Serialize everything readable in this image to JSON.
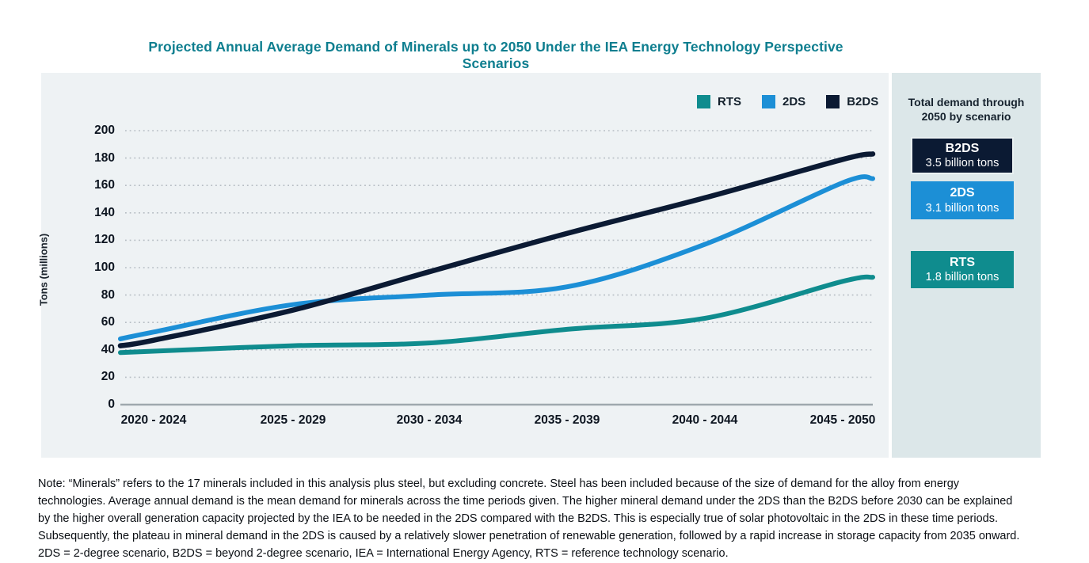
{
  "title": "Projected Annual Average Demand of Minerals up to 2050 Under the IEA Energy Technology Perspective Scenarios",
  "colors": {
    "rts_teal": "#0f8c8e",
    "tds_blue": "#1c8fd6",
    "b2ds_navy": "#0b1a33",
    "title_teal": "#0e7e8f",
    "chart_bg": "#eef2f4",
    "sidebar_bg": "#dce7e9",
    "gridline": "#b6bdc3",
    "axis_line": "#9fa8ae"
  },
  "chart_data": {
    "type": "line",
    "title": "Projected Annual Average Demand of Minerals up to 2050 Under the IEA Energy Technology Perspective Scenarios",
    "categories": [
      "2020 - 2024",
      "2025 - 2029",
      "2030 - 2034",
      "2035 - 2039",
      "2040 - 2044",
      "2045 - 2050"
    ],
    "xlabel": "",
    "ylabel": "Tons (millions)",
    "ylim": [
      0,
      200
    ],
    "ytick_step": 20,
    "grid": "horizontal-dotted",
    "legend_position": "top-right",
    "series": [
      {
        "name": "RTS",
        "color": "#0f8c8e",
        "values": [
          39,
          43,
          45,
          55,
          63,
          90
        ],
        "edge_values": [
          38,
          93
        ]
      },
      {
        "name": "2DS",
        "color": "#1c8fd6",
        "values": [
          53,
          73,
          80,
          86,
          117,
          162
        ],
        "edge_values": [
          48,
          165
        ]
      },
      {
        "name": "B2DS",
        "color": "#0b1a33",
        "values": [
          47,
          69,
          97,
          125,
          151,
          179
        ],
        "edge_values": [
          43,
          183
        ]
      }
    ]
  },
  "legend": [
    {
      "label": "RTS",
      "color": "#0f8c8e"
    },
    {
      "label": "2DS",
      "color": "#1c8fd6"
    },
    {
      "label": "B2DS",
      "color": "#0b1a33"
    }
  ],
  "sidebar": {
    "heading": "Total demand through 2050 by scenario",
    "boxes": [
      {
        "name": "B2DS",
        "value": "3.5 billion tons",
        "color": "#0b1a33",
        "bordered": true
      },
      {
        "name": "2DS",
        "value": "3.1 billion tons",
        "color": "#1c8fd6",
        "bordered": false
      },
      {
        "name": "RTS",
        "value": "1.8 billion tons",
        "color": "#0f8c8e",
        "bordered": false
      }
    ]
  },
  "note": "Note: “Minerals” refers to the 17 minerals included in this analysis plus steel, but excluding concrete. Steel has been included because of the size of demand for the alloy from energy technologies. Average annual demand is the mean demand for minerals across the time periods given. The higher mineral demand under the 2DS than the B2DS before 2030 can be explained by the higher overall generation capacity projected by the IEA to be needed in the 2DS compared with the B2DS. This is especially true of solar photovoltaic in the 2DS in these time periods. Subsequently, the plateau in mineral demand in the 2DS is caused by a relatively slower penetration of renewable generation, followed by a rapid increase in storage capacity from 2035 onward. 2DS = 2-degree scenario, B2DS = beyond 2-degree scenario, IEA = International Energy Agency, RTS = reference technology scenario."
}
